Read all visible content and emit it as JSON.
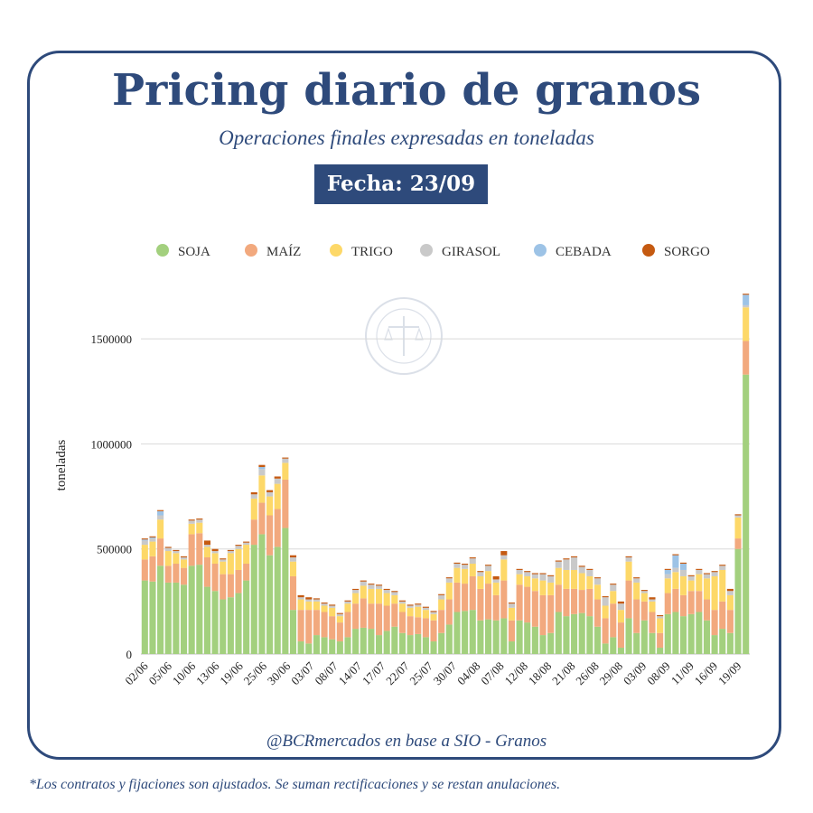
{
  "header": {
    "title": "Pricing diario de granos",
    "subtitle": "Operaciones finales expresadas en toneladas",
    "date_label": "Fecha: 23/09"
  },
  "watermark": {
    "text": "BOLSA DE COMERCIO DE ROSARIO"
  },
  "footer": {
    "source": "@BCRmercados en base a SIO - Granos",
    "note": "*Los contratos y fijaciones son ajustados. Se suman rectificaciones y  se restan anulaciones."
  },
  "chart_data": {
    "type": "bar",
    "stacked": true,
    "ylabel": "toneladas",
    "xlabel": "",
    "ylim": [
      0,
      1750000
    ],
    "yticks": [
      0,
      500000,
      1000000,
      1500000
    ],
    "grid": true,
    "legend_position": "top",
    "x_tick_labels": [
      "02/06",
      "05/06",
      "10/06",
      "13/06",
      "19/06",
      "25/06",
      "30/06",
      "03/07",
      "08/07",
      "14/07",
      "17/07",
      "22/07",
      "25/07",
      "30/07",
      "04/08",
      "07/08",
      "12/08",
      "18/08",
      "21/08",
      "26/08",
      "29/08",
      "03/09",
      "08/09",
      "11/09",
      "16/09",
      "19/09"
    ],
    "series": [
      {
        "name": "SOJA",
        "color": "#a3d07e",
        "values": [
          350000,
          345000,
          420000,
          340000,
          340000,
          330000,
          420000,
          425000,
          320000,
          300000,
          260000,
          270000,
          290000,
          350000,
          520000,
          570000,
          470000,
          510000,
          600000,
          210000,
          60000,
          50000,
          90000,
          80000,
          70000,
          60000,
          80000,
          120000,
          125000,
          120000,
          90000,
          110000,
          130000,
          100000,
          90000,
          95000,
          80000,
          60000,
          100000,
          140000,
          200000,
          205000,
          210000,
          160000,
          165000,
          160000,
          170000,
          60000,
          160000,
          150000,
          130000,
          90000,
          100000,
          200000,
          180000,
          190000,
          195000,
          180000,
          130000,
          50000,
          80000,
          30000,
          170000,
          100000,
          160000,
          100000,
          30000,
          190000,
          200000,
          180000,
          190000,
          200000,
          160000,
          90000,
          120000,
          100000,
          500000,
          1330000
        ]
      },
      {
        "name": "MAÍZ",
        "color": "#f2a97e",
        "values": [
          100000,
          120000,
          130000,
          80000,
          90000,
          80000,
          150000,
          150000,
          140000,
          130000,
          120000,
          110000,
          110000,
          80000,
          120000,
          150000,
          190000,
          180000,
          230000,
          160000,
          150000,
          160000,
          120000,
          120000,
          110000,
          90000,
          120000,
          120000,
          140000,
          120000,
          150000,
          120000,
          110000,
          100000,
          90000,
          80000,
          90000,
          100000,
          110000,
          120000,
          140000,
          130000,
          160000,
          150000,
          170000,
          120000,
          180000,
          100000,
          170000,
          170000,
          170000,
          190000,
          180000,
          130000,
          130000,
          120000,
          110000,
          130000,
          130000,
          120000,
          160000,
          120000,
          180000,
          160000,
          90000,
          100000,
          70000,
          100000,
          110000,
          100000,
          110000,
          100000,
          100000,
          120000,
          130000,
          110000,
          50000,
          160000
        ]
      },
      {
        "name": "TRIGO",
        "color": "#fdd868",
        "values": [
          70000,
          70000,
          90000,
          70000,
          50000,
          40000,
          50000,
          50000,
          50000,
          50000,
          60000,
          100000,
          100000,
          90000,
          100000,
          130000,
          90000,
          120000,
          80000,
          70000,
          50000,
          40000,
          40000,
          30000,
          40000,
          30000,
          40000,
          50000,
          60000,
          70000,
          70000,
          60000,
          40000,
          40000,
          40000,
          50000,
          40000,
          30000,
          50000,
          80000,
          70000,
          70000,
          60000,
          60000,
          60000,
          60000,
          100000,
          60000,
          50000,
          50000,
          60000,
          70000,
          60000,
          80000,
          90000,
          90000,
          80000,
          60000,
          70000,
          60000,
          60000,
          60000,
          90000,
          80000,
          40000,
          50000,
          70000,
          70000,
          80000,
          90000,
          50000,
          80000,
          100000,
          160000,
          150000,
          70000,
          100000,
          160000
        ]
      },
      {
        "name": "GIRASOL",
        "color": "#c9c9c9",
        "values": [
          20000,
          15000,
          20000,
          15000,
          10000,
          10000,
          15000,
          15000,
          10000,
          10000,
          10000,
          10000,
          15000,
          10000,
          20000,
          30000,
          20000,
          25000,
          20000,
          20000,
          10000,
          10000,
          10000,
          10000,
          10000,
          10000,
          10000,
          15000,
          20000,
          20000,
          15000,
          15000,
          15000,
          10000,
          10000,
          10000,
          10000,
          10000,
          20000,
          20000,
          20000,
          20000,
          25000,
          20000,
          25000,
          15000,
          20000,
          20000,
          20000,
          20000,
          20000,
          30000,
          30000,
          30000,
          50000,
          60000,
          30000,
          30000,
          30000,
          40000,
          30000,
          30000,
          20000,
          20000,
          10000,
          10000,
          10000,
          20000,
          20000,
          30000,
          20000,
          20000,
          20000,
          20000,
          20000,
          20000,
          10000,
          10000
        ]
      },
      {
        "name": "CEBADA",
        "color": "#9dc3e6",
        "values": [
          5000,
          5000,
          20000,
          0,
          0,
          0,
          0,
          0,
          0,
          0,
          0,
          0,
          0,
          0,
          0,
          10000,
          0,
          0,
          0,
          0,
          0,
          0,
          0,
          0,
          0,
          0,
          0,
          0,
          0,
          0,
          0,
          0,
          0,
          0,
          0,
          0,
          0,
          0,
          0,
          0,
          0,
          0,
          0,
          0,
          0,
          0,
          0,
          0,
          0,
          0,
          0,
          0,
          0,
          0,
          0,
          0,
          0,
          0,
          0,
          0,
          0,
          0,
          0,
          0,
          0,
          0,
          0,
          20000,
          60000,
          30000,
          0,
          0,
          0,
          0,
          0,
          0,
          0,
          50000
        ]
      },
      {
        "name": "SORGO",
        "color": "#c55a11",
        "values": [
          5000,
          5000,
          5000,
          5000,
          5000,
          5000,
          5000,
          5000,
          20000,
          10000,
          5000,
          5000,
          5000,
          5000,
          10000,
          10000,
          10000,
          10000,
          5000,
          10000,
          10000,
          10000,
          5000,
          5000,
          5000,
          5000,
          5000,
          5000,
          5000,
          5000,
          5000,
          5000,
          5000,
          5000,
          5000,
          5000,
          5000,
          5000,
          5000,
          5000,
          5000,
          5000,
          5000,
          5000,
          5000,
          15000,
          20000,
          5000,
          5000,
          5000,
          5000,
          5000,
          5000,
          5000,
          5000,
          5000,
          5000,
          5000,
          5000,
          5000,
          5000,
          10000,
          5000,
          5000,
          5000,
          10000,
          5000,
          5000,
          5000,
          5000,
          5000,
          5000,
          5000,
          5000,
          5000,
          10000,
          5000,
          5000
        ]
      }
    ]
  }
}
